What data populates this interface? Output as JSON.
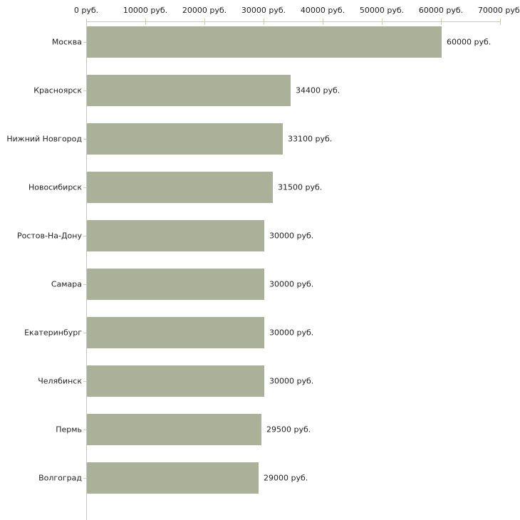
{
  "chart_data": {
    "type": "bar",
    "orientation": "horizontal",
    "title": "",
    "xlabel": "",
    "ylabel": "",
    "grid": false,
    "legend": false,
    "categories": [
      "Москва",
      "Красноярск",
      "Нижний Новгород",
      "Новосибирск",
      "Ростов-На-Дону",
      "Самара",
      "Екатеринбург",
      "Челябинск",
      "Пермь",
      "Волгоград"
    ],
    "values": [
      60000,
      34400,
      33100,
      31500,
      30000,
      30000,
      30000,
      30000,
      29500,
      29000
    ],
    "value_labels": [
      "60000 руб.",
      "34400 руб.",
      "33100 руб.",
      "31500 руб.",
      "30000 руб.",
      "30000 руб.",
      "30000 руб.",
      "30000 руб.",
      "29500 руб.",
      "29000 руб."
    ],
    "x_axis": {
      "position": "top",
      "min": 0,
      "max": 70000,
      "tick_values": [
        0,
        10000,
        20000,
        30000,
        40000,
        50000,
        60000,
        70000
      ],
      "tick_labels": [
        "0 руб.",
        "10000 руб.",
        "20000 руб.",
        "30000 руб.",
        "40000 руб.",
        "50000 руб.",
        "60000 руб.",
        "70000 руб."
      ]
    },
    "colors": {
      "bar_fill": "#abb199",
      "axis_line": "#c8c8c8",
      "tick_mark": "#cdd0a4",
      "text": "#222222",
      "background": "#ffffff"
    }
  }
}
